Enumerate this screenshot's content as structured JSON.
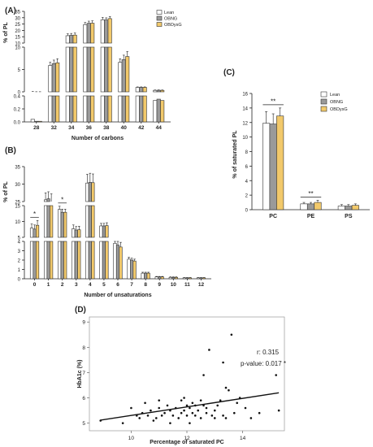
{
  "colors": {
    "lean": "#ffffff",
    "obng": "#9a9a9a",
    "obdysg": "#f2c96b",
    "stroke": "#333333"
  },
  "chart_data": [
    {
      "panel": "(A)",
      "type": "bar",
      "xlabel": "Number of carbons",
      "ylabel": "% of PL",
      "categories": [
        "28",
        "32",
        "34",
        "36",
        "38",
        "40",
        "42",
        "44"
      ],
      "legend": [
        "Lean",
        "OBNG",
        "OBDysG"
      ],
      "legend_position": "top-right",
      "axis_segments": [
        {
          "ylim": [
            0,
            0.4
          ],
          "ticks": [
            "0.0",
            "0.2",
            "0.4"
          ]
        },
        {
          "ylim": [
            0,
            10
          ],
          "ticks": [
            "0",
            "5",
            "10"
          ]
        },
        {
          "ylim": [
            10,
            35
          ],
          "ticks": [
            "10",
            "15",
            "20",
            "25",
            "30",
            "35"
          ]
        }
      ],
      "series": [
        {
          "name": "Lean",
          "values": [
            0.04,
            5.9,
            15.8,
            24.6,
            28.4,
            6.6,
            1.0,
            0.33
          ],
          "errors": [
            0.04,
            0.7,
            1.5,
            1.6,
            1.8,
            0.8,
            0.1,
            0.08
          ]
        },
        {
          "name": "OBNG",
          "values": [
            0.01,
            6.3,
            16.1,
            25.6,
            28.2,
            7.2,
            1.0,
            0.35
          ],
          "errors": [
            0.01,
            0.8,
            1.5,
            1.7,
            1.7,
            1.0,
            0.1,
            0.08
          ]
        },
        {
          "name": "OBDysG",
          "values": [
            0.01,
            6.5,
            16.3,
            25.7,
            29.3,
            7.9,
            1.0,
            0.33
          ],
          "errors": [
            0.01,
            0.9,
            1.6,
            1.8,
            1.7,
            1.1,
            0.1,
            0.08
          ]
        }
      ]
    },
    {
      "panel": "(B)",
      "type": "bar",
      "xlabel": "Number of unsaturations",
      "ylabel": "% of PL",
      "categories": [
        "0",
        "1",
        "2",
        "3",
        "4",
        "5",
        "6",
        "7",
        "8",
        "9",
        "10",
        "11",
        "12"
      ],
      "axis_segments": [
        {
          "ylim": [
            0,
            4
          ],
          "ticks": [
            "0",
            "1",
            "2",
            "3",
            "4"
          ]
        },
        {
          "ylim": [
            5,
            15
          ],
          "ticks": [
            "5",
            "10",
            "15"
          ]
        },
        {
          "ylim": [
            25,
            35
          ],
          "ticks": [
            "25",
            "30",
            "35"
          ]
        }
      ],
      "series": [
        {
          "name": "Lean",
          "values": [
            7.9,
            25.5,
            13.8,
            7.7,
            30.3,
            8.6,
            3.8,
            2.1,
            0.6,
            0.2,
            0.15,
            0.1,
            0.1
          ],
          "errors": [
            1.3,
            2.0,
            1.0,
            1.2,
            2.5,
            0.8,
            0.5,
            0.2,
            0.1,
            0.05,
            0.05,
            0.03,
            0.03
          ]
        },
        {
          "name": "OBNG",
          "values": [
            7.6,
            25.8,
            12.9,
            7.3,
            30.5,
            8.6,
            3.6,
            2.0,
            0.6,
            0.2,
            0.15,
            0.1,
            0.1
          ],
          "errors": [
            1.3,
            2.0,
            1.0,
            1.1,
            2.6,
            0.8,
            0.5,
            0.2,
            0.1,
            0.05,
            0.05,
            0.03,
            0.03
          ]
        },
        {
          "name": "OBDysG",
          "values": [
            8.8,
            25.0,
            12.9,
            7.4,
            30.4,
            8.7,
            3.4,
            1.9,
            0.6,
            0.2,
            0.15,
            0.1,
            0.1
          ],
          "errors": [
            1.5,
            2.2,
            1.0,
            1.1,
            2.5,
            0.9,
            0.5,
            0.2,
            0.1,
            0.05,
            0.05,
            0.03,
            0.03
          ]
        }
      ],
      "annotations": [
        {
          "category": "0",
          "text": "*"
        },
        {
          "category": "2",
          "text": "*"
        }
      ]
    },
    {
      "panel": "(C)",
      "type": "bar",
      "xlabel": "",
      "ylabel": "% of saturated PL",
      "categories": [
        "PC",
        "PE",
        "PS"
      ],
      "ylim": [
        0,
        16
      ],
      "yticks": [
        "0",
        "2",
        "4",
        "6",
        "8",
        "10",
        "12",
        "14",
        "16"
      ],
      "legend": [
        "Lean",
        "OBNG",
        "OBDysG"
      ],
      "legend_position": "top-right",
      "series": [
        {
          "name": "Lean",
          "values": [
            11.9,
            0.8,
            0.5
          ],
          "errors": [
            1.6,
            0.2,
            0.2
          ]
        },
        {
          "name": "OBNG",
          "values": [
            11.8,
            0.8,
            0.5
          ],
          "errors": [
            1.4,
            0.2,
            0.2
          ]
        },
        {
          "name": "OBDysG",
          "values": [
            12.9,
            1.0,
            0.6
          ],
          "errors": [
            1.1,
            0.3,
            0.2
          ]
        }
      ],
      "annotations": [
        {
          "category": "PC",
          "text": "**"
        },
        {
          "category": "PE",
          "text": "**"
        }
      ]
    },
    {
      "panel": "(D)",
      "type": "scatter",
      "xlabel": "Percentage of saturated PC",
      "ylabel": "HbA1c (%)",
      "xlim": [
        8.5,
        15.5
      ],
      "ylim": [
        4.7,
        9.2
      ],
      "xticks": [
        "10",
        "12",
        "14"
      ],
      "yticks": [
        "5",
        "6",
        "7",
        "8",
        "9"
      ],
      "stats": [
        "r: 0.315",
        "p-value: 0.017 *"
      ],
      "fit": {
        "x": [
          8.9,
          15.3
        ],
        "y": [
          5.12,
          6.2
        ]
      },
      "x": [
        8.9,
        9.7,
        10.0,
        10.2,
        10.3,
        10.4,
        10.5,
        10.6,
        10.7,
        10.8,
        10.9,
        11.0,
        11.0,
        11.1,
        11.2,
        11.3,
        11.4,
        11.4,
        11.5,
        11.6,
        11.7,
        11.8,
        11.8,
        11.9,
        11.9,
        12.0,
        12.0,
        12.1,
        12.1,
        12.2,
        12.2,
        12.3,
        12.3,
        12.4,
        12.5,
        12.5,
        12.6,
        12.7,
        12.7,
        12.8,
        12.9,
        13.0,
        13.0,
        13.1,
        13.2,
        13.3,
        13.3,
        13.4,
        13.5,
        13.6,
        13.7,
        13.8,
        13.9,
        14.1,
        14.3,
        14.6,
        15.2,
        15.3,
        12.6,
        13.4
      ],
      "y": [
        5.1,
        5.0,
        5.6,
        5.3,
        5.2,
        5.4,
        5.8,
        5.3,
        5.5,
        5.1,
        5.2,
        5.6,
        5.9,
        5.3,
        5.4,
        5.7,
        5.0,
        5.5,
        5.3,
        5.6,
        5.2,
        5.4,
        5.9,
        5.5,
        6.0,
        5.3,
        5.7,
        5.6,
        5.0,
        5.4,
        5.8,
        5.3,
        5.7,
        5.5,
        5.2,
        5.9,
        6.9,
        5.4,
        5.6,
        7.9,
        5.3,
        5.2,
        5.5,
        5.7,
        5.9,
        5.3,
        7.4,
        5.2,
        6.3,
        8.5,
        5.4,
        5.8,
        6.0,
        5.6,
        5.2,
        5.4,
        6.9,
        5.5,
        5.7,
        6.4
      ]
    }
  ]
}
